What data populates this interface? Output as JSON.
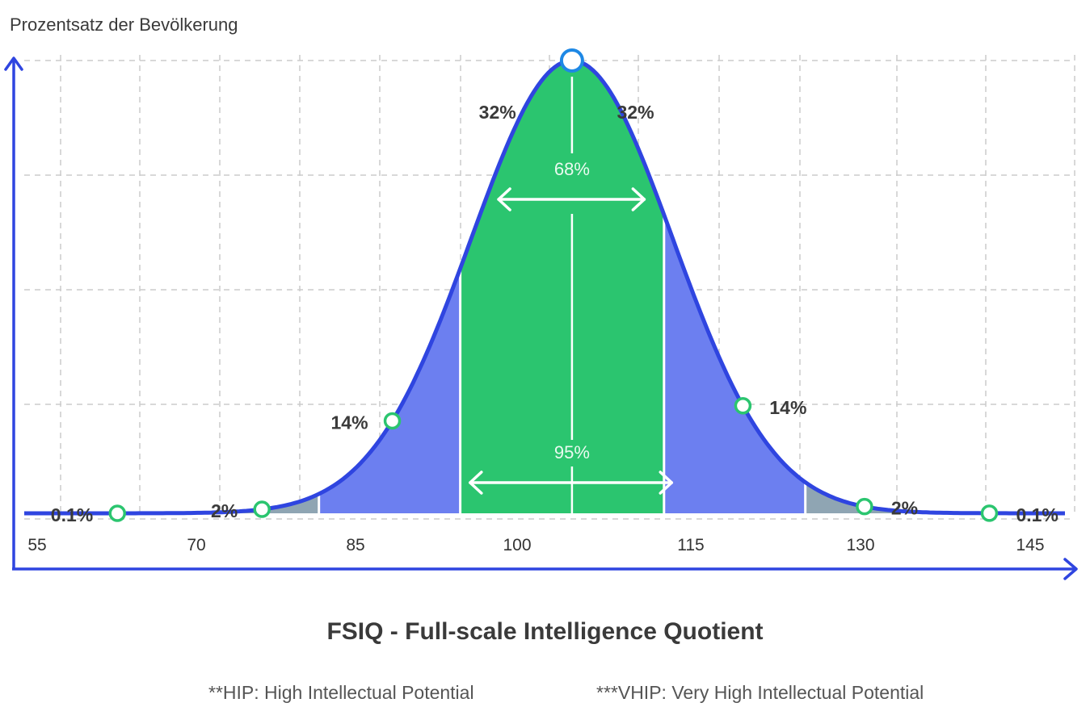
{
  "chart_data": {
    "type": "area",
    "title": "FSIQ - Full-scale Intelligence Quotient",
    "ylabel": "Prozentsatz der Bevölkerung",
    "xlabel": "",
    "x_ticks": [
      55,
      70,
      85,
      100,
      115,
      130,
      145
    ],
    "xlim": [
      53,
      148
    ],
    "mean": 103,
    "sd": 9.2,
    "peak_marker_x": 103,
    "bands": [
      {
        "from": 53,
        "to": 70.8,
        "color": "#cfe8fb"
      },
      {
        "from": 70.8,
        "to": 79.9,
        "color": "#8fa5b3"
      },
      {
        "from": 79.9,
        "to": 92.8,
        "color": "#6c7ff0"
      },
      {
        "from": 92.8,
        "to": 111.4,
        "color": "#2bc56f"
      },
      {
        "from": 111.4,
        "to": 124.3,
        "color": "#6c7ff0"
      },
      {
        "from": 124.3,
        "to": 133.2,
        "color": "#8fa5b3"
      },
      {
        "from": 133.2,
        "to": 148,
        "color": "#cfe8fb"
      }
    ],
    "point_labels": [
      {
        "x": 61.5,
        "label": "0.1%",
        "side": "left"
      },
      {
        "x": 74.7,
        "label": "2%",
        "side": "left"
      },
      {
        "x": 86.6,
        "label": "14%",
        "side": "left"
      },
      {
        "x": 118.6,
        "label": "14%",
        "side": "right"
      },
      {
        "x": 129.7,
        "label": "2%",
        "side": "right"
      },
      {
        "x": 141.1,
        "label": "0.1%",
        "side": "right"
      }
    ],
    "top_labels": [
      {
        "x": 96.2,
        "label": "32%"
      },
      {
        "x": 108.8,
        "label": "32%"
      }
    ],
    "ranges": [
      {
        "label": "68%",
        "from": 96.3,
        "to": 109.6
      },
      {
        "label": "95%",
        "from": 93.7,
        "to": 112.1
      }
    ],
    "colors": {
      "curve": "#2f45e0",
      "axis": "#2f45e0",
      "marker": "#2bc56f",
      "peak_marker": "#1e88e5",
      "grid": "#cccccc"
    }
  },
  "notes": [
    "**HIP: High Intellectual Potential",
    "***VHIP: Very High Intellectual Potential"
  ]
}
